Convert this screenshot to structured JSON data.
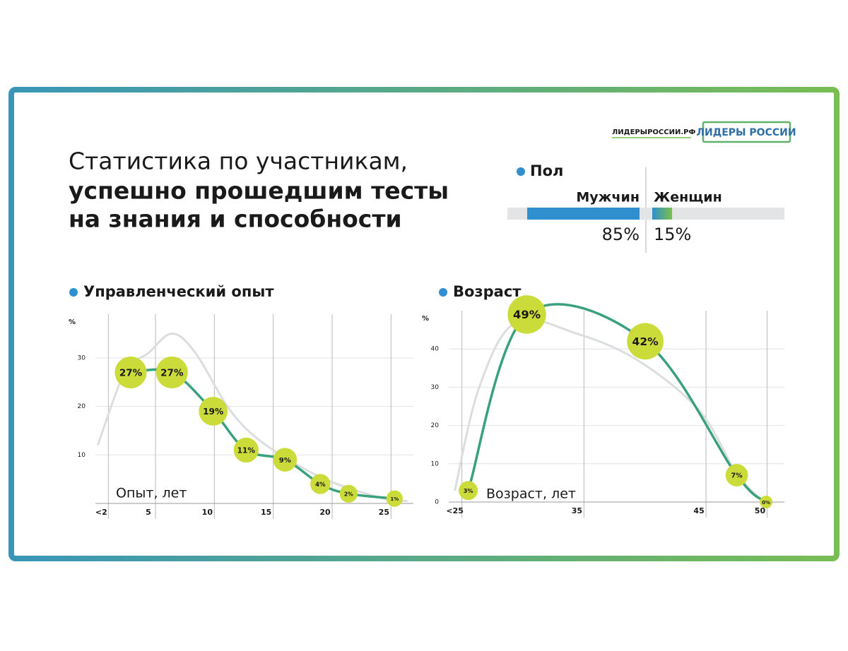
{
  "header": {
    "title_line1": "Статистика по участникам,",
    "title_line2": "успешно прошедшим тесты",
    "title_line3": "на знания и способности",
    "site": "ЛИДЕРЫРОССИИ.РФ",
    "logo": "ЛИДЕРЫ РОССИИ"
  },
  "chart_data": [
    {
      "type": "hbar",
      "title": "Пол",
      "categories": [
        "Мужчин",
        "Женщин"
      ],
      "values": [
        85,
        15
      ],
      "value_labels": [
        "85%",
        "15%"
      ],
      "colors": [
        "#2f8fcf",
        "#7cc04a"
      ],
      "xlim": [
        0,
        100
      ]
    },
    {
      "type": "line",
      "title": "Управленческий опыт",
      "x_label": "Опыт, лет",
      "y_label": "%",
      "xlim": [
        0.5,
        27.5
      ],
      "ylim": [
        0,
        39
      ],
      "xticks": [
        {
          "value": 1,
          "label": "<2"
        },
        5,
        10,
        15,
        20,
        25
      ],
      "yticks": [
        10,
        20,
        30
      ],
      "grid": true,
      "series": [
        {
          "color": "#dcdde0",
          "x": [
            0.7,
            3,
            5,
            7,
            9,
            12,
            15,
            20,
            25,
            27
          ],
          "values": [
            12,
            27,
            31,
            35,
            31,
            19,
            12,
            5,
            1,
            0.5
          ]
        },
        {
          "color": "#3aa17e",
          "x": [
            3.5,
            7,
            10.5,
            13.3,
            16.6,
            19.6,
            22,
            25.9
          ],
          "values": [
            27,
            27,
            19,
            11,
            9,
            4,
            2,
            1
          ],
          "value_labels": [
            "27%",
            "27%",
            "19%",
            "11%",
            "9%",
            "4%",
            "2%",
            "1%"
          ]
        }
      ]
    },
    {
      "type": "line",
      "title": "Возраст",
      "x_label": "Возраст, лет",
      "y_label": "%",
      "xlim": [
        24.5,
        52
      ],
      "ylim": [
        0,
        50
      ],
      "xticks": [
        {
          "value": 25,
          "label": "<25"
        },
        35,
        45,
        50
      ],
      "yticks": [
        0,
        10,
        20,
        30,
        40
      ],
      "grid": true,
      "series": [
        {
          "color": "#dcdde0",
          "x": [
            25,
            27,
            30,
            35,
            40,
            45,
            48,
            50,
            51
          ],
          "values": [
            3,
            30,
            47,
            44,
            37,
            24,
            8,
            1,
            0
          ]
        },
        {
          "color": "#3aa17e",
          "x": [
            26.1,
            30.9,
            40.6,
            48.1,
            50.5
          ],
          "values": [
            3,
            49,
            42,
            7,
            0
          ],
          "value_labels": [
            "3%",
            "49%",
            "42%",
            "7%",
            "0%"
          ]
        }
      ]
    }
  ]
}
